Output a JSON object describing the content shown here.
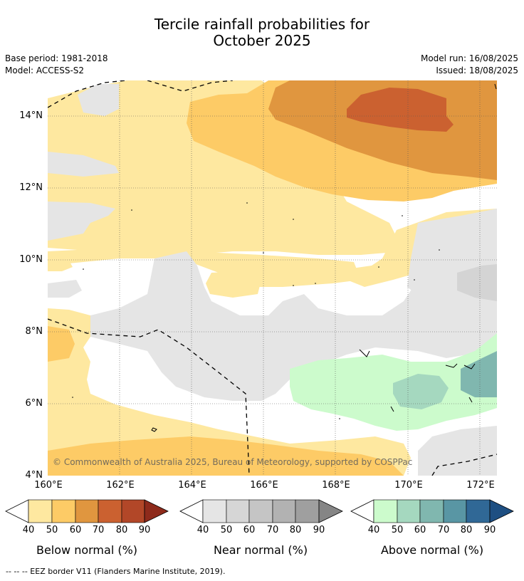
{
  "title": {
    "line1": "Tercile rainfall probabilities for",
    "line2": "October 2025"
  },
  "meta_left": {
    "base_period": "Base period: 1981-2018",
    "model": "Model: ACCESS-S2"
  },
  "meta_right": {
    "model_run": "Model run: 16/08/2025",
    "issued": "Issued: 18/08/2025"
  },
  "map": {
    "x_ticks": [
      "160°E",
      "162°E",
      "164°E",
      "166°E",
      "168°E",
      "170°E",
      "172°E"
    ],
    "y_ticks": [
      "14°N",
      "12°N",
      "10°N",
      "8°N",
      "6°N",
      "4°N"
    ],
    "copyright": "© Commonwealth of Australia 2025, Bureau of Meteorology, supported by COSPPac",
    "colors": {
      "below_40": "#fee8a0",
      "below_50": "#fdcb66",
      "below_60": "#e0963f",
      "below_70": "#cb6130",
      "near_40": "#e5e5e5",
      "near_50": "#d4d4d4",
      "above_40": "#ccfbcc",
      "above_50": "#a5d8bf",
      "above_60": "#80b7af"
    }
  },
  "colorbars": [
    {
      "title": "Below normal (%)",
      "ticks": [
        "40",
        "50",
        "60",
        "70",
        "80",
        "90"
      ],
      "colors": [
        "#fee8a0",
        "#fdcb66",
        "#e0963f",
        "#cb6130",
        "#b24728",
        "#8e2a1b"
      ]
    },
    {
      "title": "Near normal (%)",
      "ticks": [
        "40",
        "50",
        "60",
        "70",
        "80",
        "90"
      ],
      "colors": [
        "#e5e5e5",
        "#d6d6d6",
        "#c5c5c5",
        "#b2b2b2",
        "#9f9f9f",
        "#858585"
      ]
    },
    {
      "title": "Above normal (%)",
      "ticks": [
        "40",
        "50",
        "60",
        "70",
        "80",
        "90"
      ],
      "colors": [
        "#ccfbcc",
        "#a5d8bf",
        "#80b7af",
        "#5996a4",
        "#306896",
        "#1e4f82"
      ]
    }
  ],
  "footer": "-- -- -- EEZ border V11 (Flanders Marine Institute, 2019)."
}
